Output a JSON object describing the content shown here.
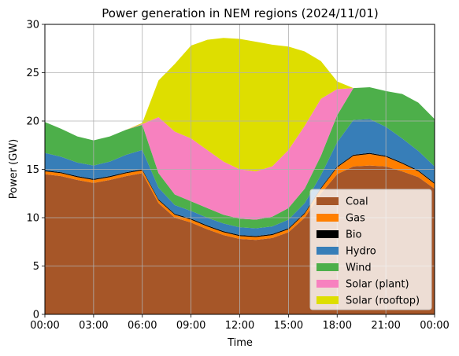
{
  "chart_data": {
    "type": "area",
    "stacked": true,
    "title": "Power generation in NEM regions (2024/11/01)",
    "xlabel": "Time",
    "ylabel": "Power (GW)",
    "ylim": [
      0,
      30
    ],
    "y_ticks": [
      0,
      5,
      10,
      15,
      20,
      25,
      30
    ],
    "x_ticks": [
      "00:00",
      "03:00",
      "06:00",
      "09:00",
      "12:00",
      "15:00",
      "18:00",
      "21:00",
      "00:00"
    ],
    "grid": true,
    "legend_position": "bottom-right",
    "x_hours": [
      0,
      1,
      2,
      3,
      4,
      5,
      6,
      7,
      8,
      9,
      10,
      11,
      12,
      13,
      14,
      15,
      16,
      17,
      18,
      19,
      20,
      21,
      22,
      23,
      24
    ],
    "series": [
      {
        "name": "Coal",
        "color": "#a65628",
        "values": [
          14.5,
          14.3,
          13.9,
          13.6,
          13.9,
          14.3,
          14.6,
          11.5,
          10.0,
          9.5,
          8.8,
          8.2,
          7.8,
          7.7,
          7.9,
          8.5,
          10.0,
          12.5,
          14.5,
          15.3,
          15.4,
          15.3,
          14.8,
          14.2,
          13.0
        ]
      },
      {
        "name": "Gas",
        "color": "#ff7f00",
        "values": [
          0.3,
          0.3,
          0.3,
          0.3,
          0.3,
          0.3,
          0.3,
          0.3,
          0.3,
          0.3,
          0.3,
          0.3,
          0.3,
          0.3,
          0.3,
          0.3,
          0.4,
          0.5,
          0.7,
          1.1,
          1.2,
          1.0,
          0.8,
          0.6,
          0.5
        ]
      },
      {
        "name": "Bio",
        "color": "#000000",
        "values": [
          0.1,
          0.1,
          0.1,
          0.1,
          0.1,
          0.1,
          0.1,
          0.1,
          0.1,
          0.1,
          0.1,
          0.1,
          0.1,
          0.1,
          0.1,
          0.1,
          0.1,
          0.1,
          0.1,
          0.1,
          0.1,
          0.1,
          0.1,
          0.1,
          0.1
        ]
      },
      {
        "name": "Hydro",
        "color": "#377eb8",
        "values": [
          1.8,
          1.6,
          1.4,
          1.4,
          1.5,
          1.8,
          2.0,
          1.2,
          0.9,
          0.8,
          0.8,
          0.8,
          0.8,
          0.8,
          0.8,
          0.9,
          1.0,
          1.3,
          2.5,
          3.6,
          3.5,
          3.0,
          2.5,
          2.0,
          1.7
        ]
      },
      {
        "name": "Wind",
        "color": "#4daf4a",
        "values": [
          3.2,
          2.9,
          2.7,
          2.6,
          2.6,
          2.6,
          2.6,
          1.5,
          1.1,
          1.0,
          1.0,
          0.9,
          0.9,
          0.9,
          1.0,
          1.2,
          1.5,
          2.0,
          2.8,
          3.3,
          3.3,
          3.7,
          4.6,
          5.0,
          4.9
        ]
      },
      {
        "name": "Solar (plant)",
        "color": "#f781bf",
        "values": [
          0,
          0,
          0,
          0,
          0,
          0,
          0.1,
          5.8,
          6.5,
          6.5,
          6.0,
          5.5,
          5.1,
          5.0,
          5.2,
          6.0,
          6.5,
          5.9,
          2.7,
          0,
          0,
          0,
          0,
          0,
          0
        ]
      },
      {
        "name": "Solar (rooftop)",
        "color": "#dede00",
        "values": [
          0,
          0,
          0,
          0,
          0,
          0,
          0.1,
          3.8,
          7.0,
          9.6,
          11.4,
          12.8,
          13.5,
          13.4,
          12.6,
          10.7,
          7.7,
          3.9,
          0.8,
          0,
          0,
          0,
          0,
          0,
          0
        ]
      }
    ]
  }
}
